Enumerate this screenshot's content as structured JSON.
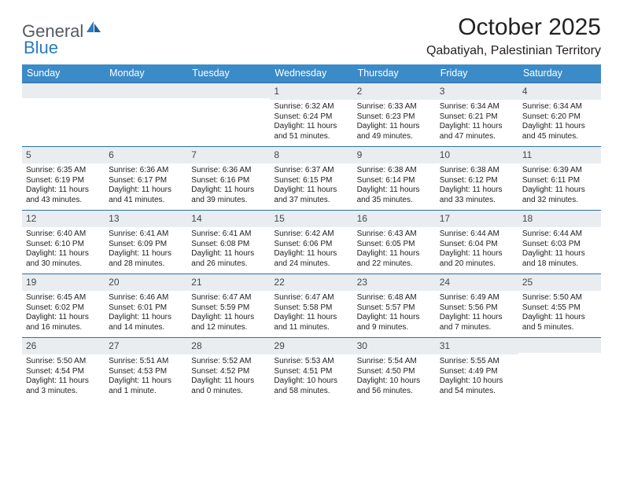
{
  "logo": {
    "text1": "General",
    "text2": "Blue"
  },
  "title": "October 2025",
  "location": "Qabatiyah, Palestinian Territory",
  "day_headers": [
    "Sunday",
    "Monday",
    "Tuesday",
    "Wednesday",
    "Thursday",
    "Friday",
    "Saturday"
  ],
  "colors": {
    "header_bg": "#3b8bc8",
    "header_text": "#ffffff",
    "daynum_bg": "#e9edf0",
    "row_border": "#2f6fa5",
    "logo_gray": "#555b61",
    "logo_blue": "#2b7bbf"
  },
  "weeks": [
    [
      {
        "empty": true
      },
      {
        "empty": true
      },
      {
        "empty": true
      },
      {
        "num": "1",
        "sunrise": "Sunrise: 6:32 AM",
        "sunset": "Sunset: 6:24 PM",
        "day1": "Daylight: 11 hours",
        "day2": "and 51 minutes."
      },
      {
        "num": "2",
        "sunrise": "Sunrise: 6:33 AM",
        "sunset": "Sunset: 6:23 PM",
        "day1": "Daylight: 11 hours",
        "day2": "and 49 minutes."
      },
      {
        "num": "3",
        "sunrise": "Sunrise: 6:34 AM",
        "sunset": "Sunset: 6:21 PM",
        "day1": "Daylight: 11 hours",
        "day2": "and 47 minutes."
      },
      {
        "num": "4",
        "sunrise": "Sunrise: 6:34 AM",
        "sunset": "Sunset: 6:20 PM",
        "day1": "Daylight: 11 hours",
        "day2": "and 45 minutes."
      }
    ],
    [
      {
        "num": "5",
        "sunrise": "Sunrise: 6:35 AM",
        "sunset": "Sunset: 6:19 PM",
        "day1": "Daylight: 11 hours",
        "day2": "and 43 minutes."
      },
      {
        "num": "6",
        "sunrise": "Sunrise: 6:36 AM",
        "sunset": "Sunset: 6:17 PM",
        "day1": "Daylight: 11 hours",
        "day2": "and 41 minutes."
      },
      {
        "num": "7",
        "sunrise": "Sunrise: 6:36 AM",
        "sunset": "Sunset: 6:16 PM",
        "day1": "Daylight: 11 hours",
        "day2": "and 39 minutes."
      },
      {
        "num": "8",
        "sunrise": "Sunrise: 6:37 AM",
        "sunset": "Sunset: 6:15 PM",
        "day1": "Daylight: 11 hours",
        "day2": "and 37 minutes."
      },
      {
        "num": "9",
        "sunrise": "Sunrise: 6:38 AM",
        "sunset": "Sunset: 6:14 PM",
        "day1": "Daylight: 11 hours",
        "day2": "and 35 minutes."
      },
      {
        "num": "10",
        "sunrise": "Sunrise: 6:38 AM",
        "sunset": "Sunset: 6:12 PM",
        "day1": "Daylight: 11 hours",
        "day2": "and 33 minutes."
      },
      {
        "num": "11",
        "sunrise": "Sunrise: 6:39 AM",
        "sunset": "Sunset: 6:11 PM",
        "day1": "Daylight: 11 hours",
        "day2": "and 32 minutes."
      }
    ],
    [
      {
        "num": "12",
        "sunrise": "Sunrise: 6:40 AM",
        "sunset": "Sunset: 6:10 PM",
        "day1": "Daylight: 11 hours",
        "day2": "and 30 minutes."
      },
      {
        "num": "13",
        "sunrise": "Sunrise: 6:41 AM",
        "sunset": "Sunset: 6:09 PM",
        "day1": "Daylight: 11 hours",
        "day2": "and 28 minutes."
      },
      {
        "num": "14",
        "sunrise": "Sunrise: 6:41 AM",
        "sunset": "Sunset: 6:08 PM",
        "day1": "Daylight: 11 hours",
        "day2": "and 26 minutes."
      },
      {
        "num": "15",
        "sunrise": "Sunrise: 6:42 AM",
        "sunset": "Sunset: 6:06 PM",
        "day1": "Daylight: 11 hours",
        "day2": "and 24 minutes."
      },
      {
        "num": "16",
        "sunrise": "Sunrise: 6:43 AM",
        "sunset": "Sunset: 6:05 PM",
        "day1": "Daylight: 11 hours",
        "day2": "and 22 minutes."
      },
      {
        "num": "17",
        "sunrise": "Sunrise: 6:44 AM",
        "sunset": "Sunset: 6:04 PM",
        "day1": "Daylight: 11 hours",
        "day2": "and 20 minutes."
      },
      {
        "num": "18",
        "sunrise": "Sunrise: 6:44 AM",
        "sunset": "Sunset: 6:03 PM",
        "day1": "Daylight: 11 hours",
        "day2": "and 18 minutes."
      }
    ],
    [
      {
        "num": "19",
        "sunrise": "Sunrise: 6:45 AM",
        "sunset": "Sunset: 6:02 PM",
        "day1": "Daylight: 11 hours",
        "day2": "and 16 minutes."
      },
      {
        "num": "20",
        "sunrise": "Sunrise: 6:46 AM",
        "sunset": "Sunset: 6:01 PM",
        "day1": "Daylight: 11 hours",
        "day2": "and 14 minutes."
      },
      {
        "num": "21",
        "sunrise": "Sunrise: 6:47 AM",
        "sunset": "Sunset: 5:59 PM",
        "day1": "Daylight: 11 hours",
        "day2": "and 12 minutes."
      },
      {
        "num": "22",
        "sunrise": "Sunrise: 6:47 AM",
        "sunset": "Sunset: 5:58 PM",
        "day1": "Daylight: 11 hours",
        "day2": "and 11 minutes."
      },
      {
        "num": "23",
        "sunrise": "Sunrise: 6:48 AM",
        "sunset": "Sunset: 5:57 PM",
        "day1": "Daylight: 11 hours",
        "day2": "and 9 minutes."
      },
      {
        "num": "24",
        "sunrise": "Sunrise: 6:49 AM",
        "sunset": "Sunset: 5:56 PM",
        "day1": "Daylight: 11 hours",
        "day2": "and 7 minutes."
      },
      {
        "num": "25",
        "sunrise": "Sunrise: 5:50 AM",
        "sunset": "Sunset: 4:55 PM",
        "day1": "Daylight: 11 hours",
        "day2": "and 5 minutes."
      }
    ],
    [
      {
        "num": "26",
        "sunrise": "Sunrise: 5:50 AM",
        "sunset": "Sunset: 4:54 PM",
        "day1": "Daylight: 11 hours",
        "day2": "and 3 minutes."
      },
      {
        "num": "27",
        "sunrise": "Sunrise: 5:51 AM",
        "sunset": "Sunset: 4:53 PM",
        "day1": "Daylight: 11 hours",
        "day2": "and 1 minute."
      },
      {
        "num": "28",
        "sunrise": "Sunrise: 5:52 AM",
        "sunset": "Sunset: 4:52 PM",
        "day1": "Daylight: 11 hours",
        "day2": "and 0 minutes."
      },
      {
        "num": "29",
        "sunrise": "Sunrise: 5:53 AM",
        "sunset": "Sunset: 4:51 PM",
        "day1": "Daylight: 10 hours",
        "day2": "and 58 minutes."
      },
      {
        "num": "30",
        "sunrise": "Sunrise: 5:54 AM",
        "sunset": "Sunset: 4:50 PM",
        "day1": "Daylight: 10 hours",
        "day2": "and 56 minutes."
      },
      {
        "num": "31",
        "sunrise": "Sunrise: 5:55 AM",
        "sunset": "Sunset: 4:49 PM",
        "day1": "Daylight: 10 hours",
        "day2": "and 54 minutes."
      },
      {
        "empty": true
      }
    ]
  ]
}
